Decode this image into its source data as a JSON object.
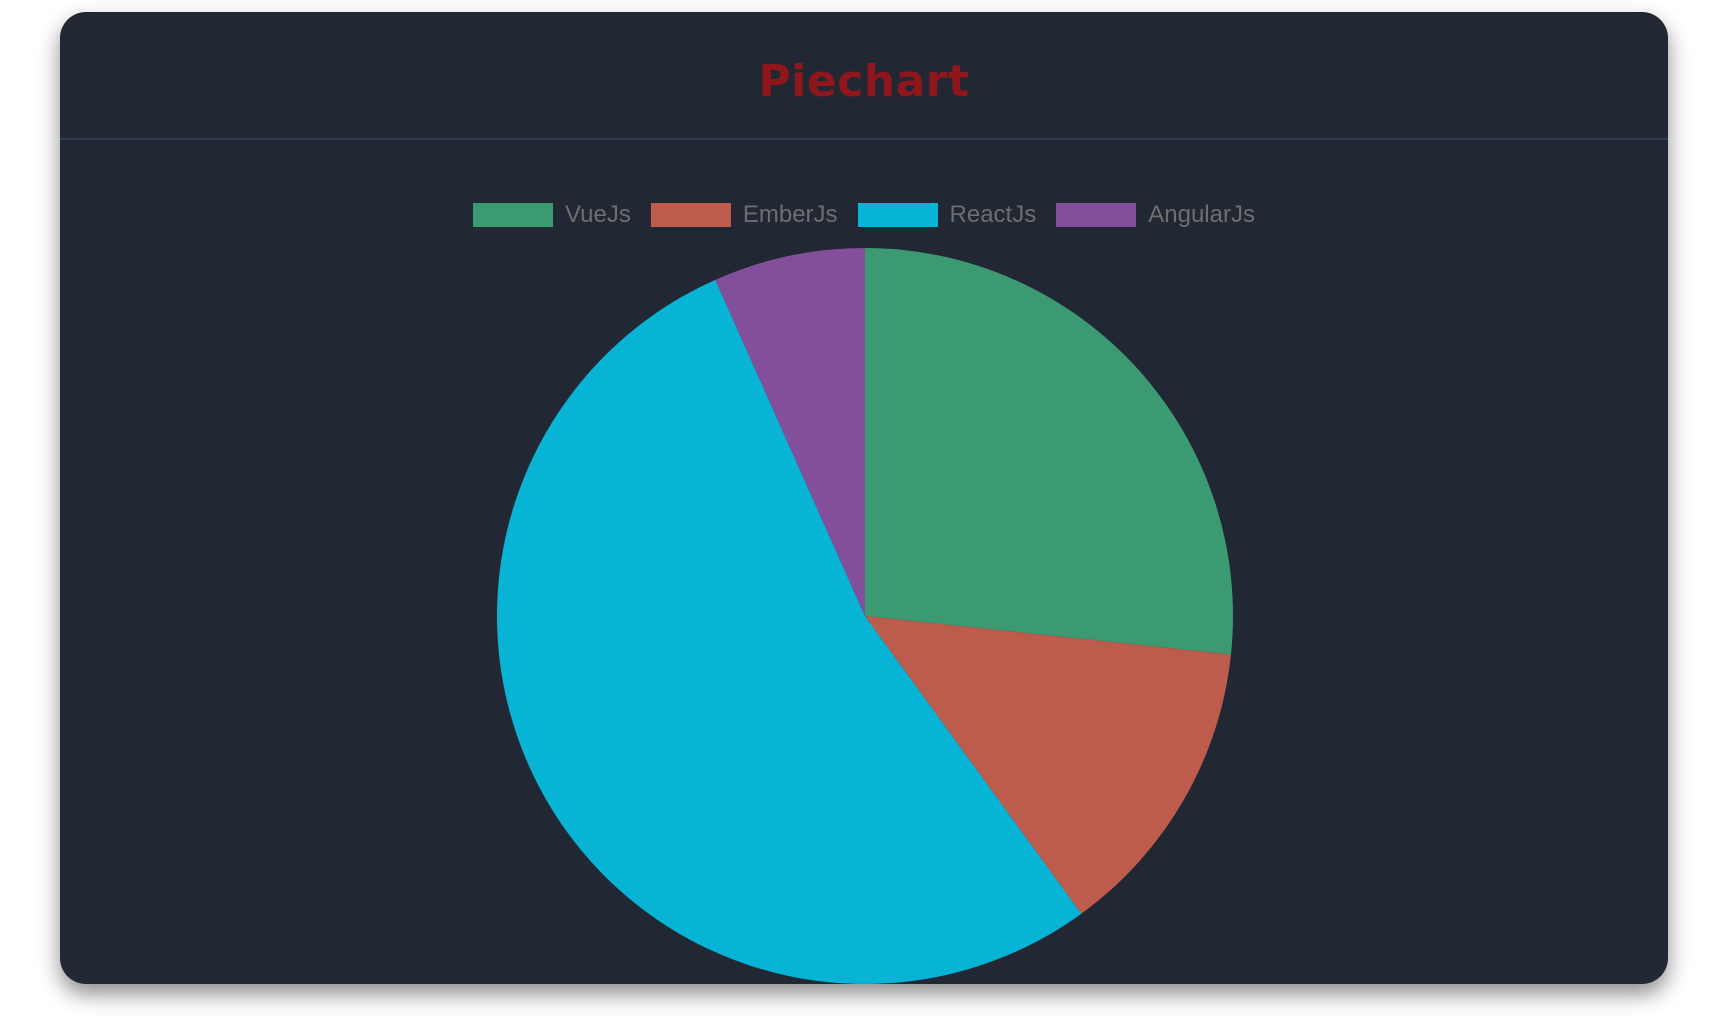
{
  "title": "Piechart",
  "chart_data": {
    "type": "pie",
    "title": "Piechart",
    "legend_position": "top",
    "categories": [
      "VueJs",
      "EmberJs",
      "ReactJs",
      "AngularJs"
    ],
    "values": [
      40,
      20,
      80,
      10
    ],
    "colors": [
      "#3c9a73",
      "#bd5b4c",
      "#07b4d6",
      "#844f9a"
    ],
    "start_angle": "top",
    "direction": "clockwise"
  }
}
